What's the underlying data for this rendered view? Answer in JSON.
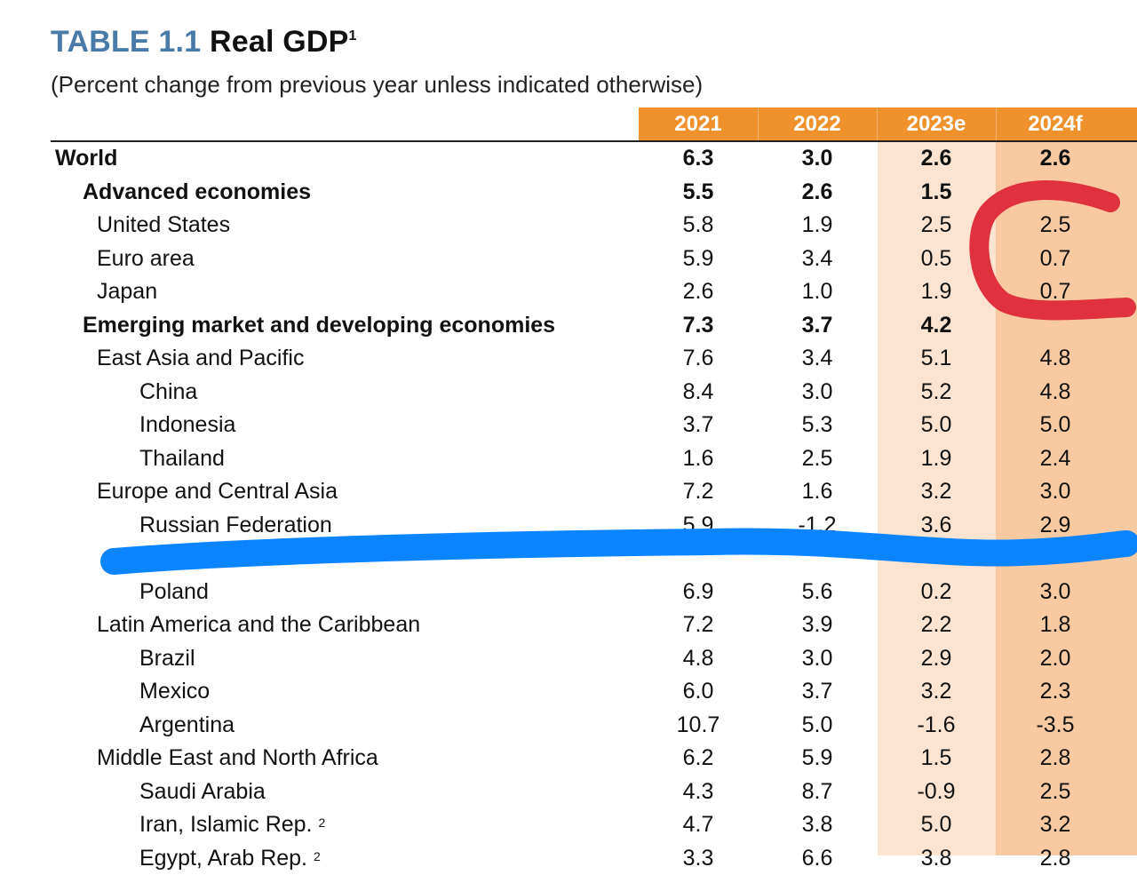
{
  "title": {
    "number": "TABLE 1.1",
    "text": "Real GDP",
    "footnote": "1"
  },
  "subtitle": "(Percent change from previous year unless indicated otherwise)",
  "columns": [
    "2021",
    "2022",
    "2023e",
    "2024f"
  ],
  "colors": {
    "header": "#ef922e",
    "estimate_band": "#fde4d0",
    "forecast_band": "#f9caa2",
    "title_number": "#4a7aa8",
    "red_marker": "#e0323e",
    "blue_marker": "#0a84ff"
  },
  "rows": [
    {
      "label": "World",
      "level": 0,
      "bold": true,
      "values": [
        "6.3",
        "3.0",
        "2.6",
        "2.6"
      ]
    },
    {
      "label": "Advanced economies",
      "level": 1,
      "bold": true,
      "values": [
        "5.5",
        "2.6",
        "1.5",
        ""
      ]
    },
    {
      "label": "United States",
      "level": 2,
      "bold": false,
      "values": [
        "5.8",
        "1.9",
        "2.5",
        "2.5"
      ]
    },
    {
      "label": "Euro area",
      "level": 2,
      "bold": false,
      "values": [
        "5.9",
        "3.4",
        "0.5",
        "0.7"
      ]
    },
    {
      "label": "Japan",
      "level": 2,
      "bold": false,
      "values": [
        "2.6",
        "1.0",
        "1.9",
        "0.7"
      ]
    },
    {
      "label": "Emerging market and developing economies",
      "level": 1,
      "bold": true,
      "values": [
        "7.3",
        "3.7",
        "4.2",
        ""
      ]
    },
    {
      "label": "East Asia and Pacific",
      "level": 2,
      "bold": false,
      "values": [
        "7.6",
        "3.4",
        "5.1",
        "4.8"
      ]
    },
    {
      "label": "China",
      "level": 3,
      "bold": false,
      "values": [
        "8.4",
        "3.0",
        "5.2",
        "4.8"
      ]
    },
    {
      "label": "Indonesia",
      "level": 3,
      "bold": false,
      "values": [
        "3.7",
        "5.3",
        "5.0",
        "5.0"
      ]
    },
    {
      "label": "Thailand",
      "level": 3,
      "bold": false,
      "values": [
        "1.6",
        "2.5",
        "1.9",
        "2.4"
      ]
    },
    {
      "label": "Europe and Central Asia",
      "level": 2,
      "bold": false,
      "values": [
        "7.2",
        "1.6",
        "3.2",
        "3.0"
      ]
    },
    {
      "label": "Russian Federation",
      "level": 3,
      "bold": false,
      "values": [
        "5.9",
        "-1.2",
        "3.6",
        "2.9"
      ]
    },
    {
      "label": "",
      "level": 3,
      "bold": false,
      "values": [
        "",
        "",
        "",
        ""
      ]
    },
    {
      "label": "Poland",
      "level": 3,
      "bold": false,
      "values": [
        "6.9",
        "5.6",
        "0.2",
        "3.0"
      ]
    },
    {
      "label": "Latin America and the Caribbean",
      "level": 2,
      "bold": false,
      "values": [
        "7.2",
        "3.9",
        "2.2",
        "1.8"
      ]
    },
    {
      "label": "Brazil",
      "level": 3,
      "bold": false,
      "values": [
        "4.8",
        "3.0",
        "2.9",
        "2.0"
      ]
    },
    {
      "label": "Mexico",
      "level": 3,
      "bold": false,
      "values": [
        "6.0",
        "3.7",
        "3.2",
        "2.3"
      ]
    },
    {
      "label": "Argentina",
      "level": 3,
      "bold": false,
      "values": [
        "10.7",
        "5.0",
        "-1.6",
        "-3.5"
      ]
    },
    {
      "label": "Middle East and North Africa",
      "level": 2,
      "bold": false,
      "values": [
        "6.2",
        "5.9",
        "1.5",
        "2.8"
      ]
    },
    {
      "label": "Saudi Arabia",
      "level": 3,
      "bold": false,
      "values": [
        "4.3",
        "8.7",
        "-0.9",
        "2.5"
      ]
    },
    {
      "label": "Iran, Islamic Rep.",
      "footnote": "2",
      "level": 3,
      "bold": false,
      "values": [
        "4.7",
        "3.8",
        "5.0",
        "3.2"
      ]
    },
    {
      "label": "Egypt, Arab Rep.",
      "footnote": "2",
      "level": 3,
      "bold": false,
      "values": [
        "3.3",
        "6.6",
        "3.8",
        "2.8"
      ]
    }
  ]
}
